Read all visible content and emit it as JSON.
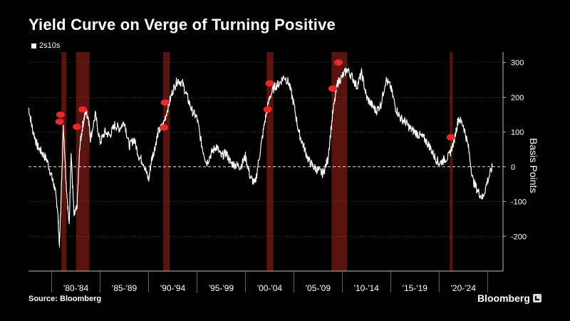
{
  "title": "Yield Curve on Verge of Turning Positive",
  "source": "Source: Bloomberg",
  "brand": "Bloomberg",
  "colors": {
    "background": "#000000",
    "line": "#ffffff",
    "recession": "#5a1410",
    "marker": "#e8282b",
    "grid": "#5a5a5a"
  },
  "chart_data": {
    "type": "line",
    "title": "Yield Curve on Verge of Turning Positive",
    "ylabel": "Basis Points",
    "xlabel": "",
    "ylim": [
      -300,
      330
    ],
    "xlim": [
      1976.6,
      2025.6
    ],
    "yticks": [
      300,
      200,
      100,
      0,
      -100,
      -200
    ],
    "legend": "top-left",
    "grid": true,
    "zero_line": "dashed",
    "x_tick_labels": [
      {
        "label": "'80-'84",
        "from": 1979,
        "to": 1984
      },
      {
        "label": "'85-'89",
        "from": 1984,
        "to": 1989
      },
      {
        "label": "'90-'94",
        "from": 1989,
        "to": 1994
      },
      {
        "label": "'95-'99",
        "from": 1994,
        "to": 1999
      },
      {
        "label": "'00-'04",
        "from": 1999,
        "to": 2004
      },
      {
        "label": "'05-'09",
        "from": 2004,
        "to": 2009
      },
      {
        "label": "'10-'14",
        "from": 2009,
        "to": 2014
      },
      {
        "label": "'15-'19",
        "from": 2014,
        "to": 2019
      },
      {
        "label": "'20-'24",
        "from": 2019,
        "to": 2024
      }
    ],
    "recessions": [
      [
        1980.0,
        1980.5
      ],
      [
        1981.5,
        1982.9
      ],
      [
        1990.5,
        1991.2
      ],
      [
        2001.2,
        2001.9
      ],
      [
        2007.9,
        2009.5
      ],
      [
        2020.1,
        2020.4
      ]
    ],
    "markers": [
      {
        "x": 1979.8,
        "y": 130
      },
      {
        "x": 1979.9,
        "y": 150
      },
      {
        "x": 1981.6,
        "y": 115
      },
      {
        "x": 1982.2,
        "y": 165
      },
      {
        "x": 1990.6,
        "y": 113
      },
      {
        "x": 1990.7,
        "y": 185
      },
      {
        "x": 2001.3,
        "y": 165
      },
      {
        "x": 2001.5,
        "y": 240
      },
      {
        "x": 2008.0,
        "y": 225
      },
      {
        "x": 2008.6,
        "y": 300
      },
      {
        "x": 2020.2,
        "y": 85
      }
    ],
    "series": [
      {
        "name": "2s10s",
        "x": [
          1976.6,
          1977.0,
          1977.5,
          1978.0,
          1978.5,
          1979.0,
          1979.3,
          1979.6,
          1979.8,
          1980.0,
          1980.2,
          1980.5,
          1980.8,
          1981.0,
          1981.3,
          1981.6,
          1981.9,
          1982.2,
          1982.5,
          1982.8,
          1983.0,
          1983.5,
          1984.0,
          1984.5,
          1985.0,
          1985.5,
          1986.0,
          1986.5,
          1987.0,
          1987.5,
          1988.0,
          1988.5,
          1989.0,
          1989.3,
          1989.6,
          1990.0,
          1990.5,
          1991.0,
          1991.5,
          1992.0,
          1992.5,
          1993.0,
          1993.5,
          1994.0,
          1994.5,
          1995.0,
          1995.5,
          1996.0,
          1996.5,
          1997.0,
          1997.5,
          1998.0,
          1998.5,
          1999.0,
          1999.5,
          2000.0,
          2000.5,
          2001.0,
          2001.5,
          2002.0,
          2002.5,
          2003.0,
          2003.5,
          2004.0,
          2004.5,
          2005.0,
          2005.5,
          2006.0,
          2006.5,
          2007.0,
          2007.5,
          2008.0,
          2008.5,
          2009.0,
          2009.5,
          2010.0,
          2010.5,
          2011.0,
          2011.5,
          2012.0,
          2012.5,
          2013.0,
          2013.5,
          2014.0,
          2014.5,
          2015.0,
          2015.5,
          2016.0,
          2016.5,
          2017.0,
          2017.5,
          2018.0,
          2018.5,
          2019.0,
          2019.5,
          2020.0,
          2020.5,
          2021.0,
          2021.5,
          2022.0,
          2022.5,
          2023.0,
          2023.5,
          2024.0,
          2024.5
        ],
        "y": [
          170,
          110,
          60,
          40,
          20,
          -30,
          -60,
          -120,
          -230,
          -60,
          120,
          -50,
          -170,
          40,
          -140,
          -120,
          60,
          120,
          160,
          140,
          80,
          150,
          70,
          100,
          90,
          120,
          110,
          130,
          60,
          80,
          30,
          10,
          -40,
          20,
          50,
          100,
          120,
          170,
          220,
          250,
          240,
          200,
          160,
          140,
          60,
          10,
          40,
          60,
          30,
          40,
          10,
          5,
          0,
          30,
          -30,
          -50,
          40,
          130,
          200,
          230,
          240,
          260,
          240,
          180,
          100,
          60,
          20,
          0,
          -10,
          -20,
          20,
          150,
          240,
          260,
          280,
          260,
          230,
          270,
          200,
          180,
          160,
          180,
          250,
          230,
          170,
          140,
          130,
          110,
          100,
          90,
          80,
          60,
          30,
          10,
          20,
          30,
          70,
          140,
          120,
          60,
          -40,
          -70,
          -90,
          -40,
          0
        ]
      }
    ]
  }
}
